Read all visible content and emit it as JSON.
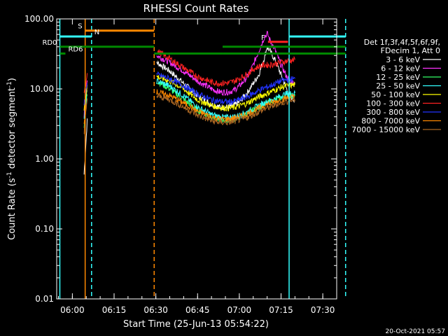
{
  "chart_data": {
    "type": "line",
    "title": "RHESSI Count Rates",
    "xlabel": "Start Time (25-Jun-13 05:54:22)",
    "ylabel_prefix": "Count Rate (s",
    "ylabel_sup": "-1",
    "ylabel_mid": " detector segment",
    "ylabel_sup2": "-1",
    "ylabel_suffix": ")",
    "yscale": "log",
    "xlim_min": [
      5,
      54.37
    ],
    "xlim_max_min": [
      7,
      35
    ],
    "ylim": [
      0.01,
      100
    ],
    "x_ticks": [
      {
        "t": 360,
        "label": "06:00"
      },
      {
        "t": 375,
        "label": "06:15"
      },
      {
        "t": 390,
        "label": "06:30"
      },
      {
        "t": 405,
        "label": "06:45"
      },
      {
        "t": 420,
        "label": "07:00"
      },
      {
        "t": 435,
        "label": "07:15"
      },
      {
        "t": 450,
        "label": "07:30"
      }
    ],
    "y_ticks": [
      {
        "v": 100,
        "label": "100.00"
      },
      {
        "v": 10,
        "label": "10.00"
      },
      {
        "v": 1,
        "label": "1.00"
      },
      {
        "v": 0.1,
        "label": "0.10"
      },
      {
        "v": 0.01,
        "label": "0.01"
      }
    ],
    "legend_header": [
      "Det 1f,3f,4f,5f,6f,9f,",
      "FDecim 1, Att 0"
    ],
    "legend_position": "right",
    "series": [
      {
        "name": "3 - 6 keV",
        "color": "#ffffff",
        "x": [
          364.2,
          365.5,
          390.3,
          395,
          400,
          405,
          410,
          413,
          416,
          418,
          420,
          423,
          425,
          427,
          429,
          430,
          431,
          433,
          435,
          437,
          438,
          439,
          440
        ],
        "y": [
          0.6,
          4.5,
          24,
          18,
          12,
          8,
          6,
          5.5,
          5.5,
          5.8,
          6.5,
          9,
          12,
          16,
          28,
          40,
          35,
          25,
          16,
          10,
          8,
          7.5,
          7
        ]
      },
      {
        "name": "6 - 12 keV",
        "color": "#ff33ff",
        "x": [
          364.2,
          365.5,
          390.3,
          395,
          400,
          405,
          410,
          413,
          416,
          418,
          420,
          423,
          425,
          427,
          429,
          430,
          431,
          433,
          435,
          437,
          438,
          439,
          440
        ],
        "y": [
          4,
          17,
          30,
          24,
          18,
          13,
          10,
          9,
          9,
          9.5,
          11,
          15,
          22,
          35,
          55,
          62,
          50,
          35,
          22,
          15,
          13,
          12.5,
          12
        ]
      },
      {
        "name": "12 - 25 keV",
        "color": "#33ff66",
        "x": [
          364.2,
          365.5,
          390.3,
          395,
          400,
          405,
          410,
          413,
          416,
          418,
          420,
          423,
          425,
          427,
          429,
          431,
          433,
          435,
          437,
          440
        ],
        "y": [
          3,
          10,
          13,
          10,
          7,
          5,
          4,
          3.7,
          3.6,
          3.7,
          4,
          4.5,
          5,
          5.5,
          6,
          6.5,
          7,
          7.5,
          8,
          8
        ]
      },
      {
        "name": "25 - 50 keV",
        "color": "#33ffff",
        "x": [
          364.2,
          365.5,
          390.3,
          395,
          400,
          405,
          410,
          413,
          416,
          418,
          420,
          423,
          425,
          427,
          429,
          431,
          433,
          435,
          437,
          440
        ],
        "y": [
          3.5,
          11,
          13,
          11,
          8,
          5.5,
          4.3,
          4,
          3.9,
          4,
          4.2,
          4.7,
          5.2,
          5.8,
          6.3,
          6.8,
          7.3,
          8,
          8.5,
          8.7
        ]
      },
      {
        "name": "50 - 100 keV",
        "color": "#ffff00",
        "x": [
          364.2,
          365.5,
          390.3,
          395,
          400,
          405,
          410,
          413,
          416,
          418,
          420,
          423,
          425,
          427,
          429,
          431,
          433,
          435,
          437,
          440
        ],
        "y": [
          5,
          13,
          15,
          13,
          10,
          7,
          5.8,
          5.4,
          5.3,
          5.4,
          5.7,
          6.3,
          7,
          7.7,
          8.3,
          9,
          9.7,
          10.5,
          11,
          11.5
        ]
      },
      {
        "name": "100 - 300 keV",
        "color": "#ff2222",
        "x": [
          364.2,
          365.5,
          390.3,
          395,
          400,
          405,
          410,
          413,
          416,
          418,
          420,
          423,
          425,
          427,
          429,
          431,
          433,
          435,
          437,
          440
        ],
        "y": [
          8,
          19,
          35,
          27,
          20,
          15,
          12.5,
          12,
          12.2,
          12.8,
          14,
          16.5,
          19,
          21,
          22,
          22,
          23,
          24,
          25,
          26
        ]
      },
      {
        "name": "300 - 800 keV",
        "color": "#2233ff",
        "x": [
          364.2,
          365.5,
          390.3,
          395,
          400,
          405,
          410,
          413,
          416,
          418,
          420,
          423,
          425,
          427,
          429,
          431,
          433,
          435,
          437,
          440
        ],
        "y": [
          6,
          14,
          16,
          14,
          11,
          8.5,
          7,
          6.6,
          6.5,
          6.6,
          7,
          7.8,
          8.6,
          9.5,
          10.3,
          11,
          12,
          13,
          13.5,
          14
        ]
      },
      {
        "name": "800 - 7000 keV",
        "color": "#ff8800",
        "x": [
          364.2,
          365.5,
          390.3,
          395,
          400,
          405,
          410,
          413,
          416,
          418,
          420,
          423,
          425,
          427,
          429,
          431,
          433,
          435,
          437,
          440
        ],
        "y": [
          3,
          9,
          9,
          8,
          6.3,
          4.8,
          4,
          3.7,
          3.7,
          3.8,
          4,
          4.4,
          4.8,
          5.3,
          5.8,
          6.2,
          6.6,
          7,
          7.4,
          7.8
        ]
      },
      {
        "name": "7000 - 15000 keV",
        "color": "#aa6622",
        "x": [
          364.2,
          365.5,
          390.3,
          395,
          400,
          405,
          410,
          413,
          416,
          418,
          420,
          423,
          425,
          427,
          429,
          431,
          433,
          435,
          437,
          440
        ],
        "y": [
          2.5,
          8,
          8,
          7,
          5.5,
          4.2,
          3.5,
          3.3,
          3.3,
          3.4,
          3.6,
          3.9,
          4.3,
          4.7,
          5.1,
          5.5,
          5.9,
          6.3,
          6.6,
          7
        ]
      }
    ],
    "vlines": [
      {
        "t": 355.5,
        "color": "#33ffff",
        "style": "solid"
      },
      {
        "t": 364.6,
        "color": "#ff8800",
        "style": "solid"
      },
      {
        "t": 366.9,
        "color": "#33ffff",
        "style": "dashed"
      },
      {
        "t": 389.4,
        "color": "#ff8800",
        "style": "dashed"
      },
      {
        "t": 437.9,
        "color": "#33ffff",
        "style": "solid"
      },
      {
        "t": 458.2,
        "color": "#33ffff",
        "style": "dashed"
      }
    ],
    "bars": [
      {
        "label": "S",
        "color": "#ff8800",
        "y": 68,
        "segs": [
          [
            364.6,
            389.4
          ]
        ],
        "label_pos": "left"
      },
      {
        "label": "N",
        "color": "#33ffff",
        "y": 56,
        "segs": [
          [
            355.5,
            366.9
          ],
          [
            437.9,
            458.2
          ]
        ],
        "label_pos": "right"
      },
      {
        "label": "RD0",
        "color": "#008800",
        "y": 40,
        "segs": [
          [
            355.5,
            389.4
          ],
          [
            414,
            458.2
          ]
        ],
        "label_pos": "left"
      },
      {
        "label": "RD6",
        "color": "#008800",
        "y": 32,
        "segs": [
          [
            355.5,
            357.5
          ],
          [
            389.4,
            414
          ],
          [
            414,
            458.2
          ]
        ],
        "label_pos": "right"
      },
      {
        "label": "F",
        "color": "#ff2222",
        "y": 47,
        "segs": [
          [
            430.3,
            437.5
          ]
        ],
        "label_pos": "left"
      }
    ],
    "grid": false,
    "footer_stamp": "20-Oct-2021 05:57"
  }
}
